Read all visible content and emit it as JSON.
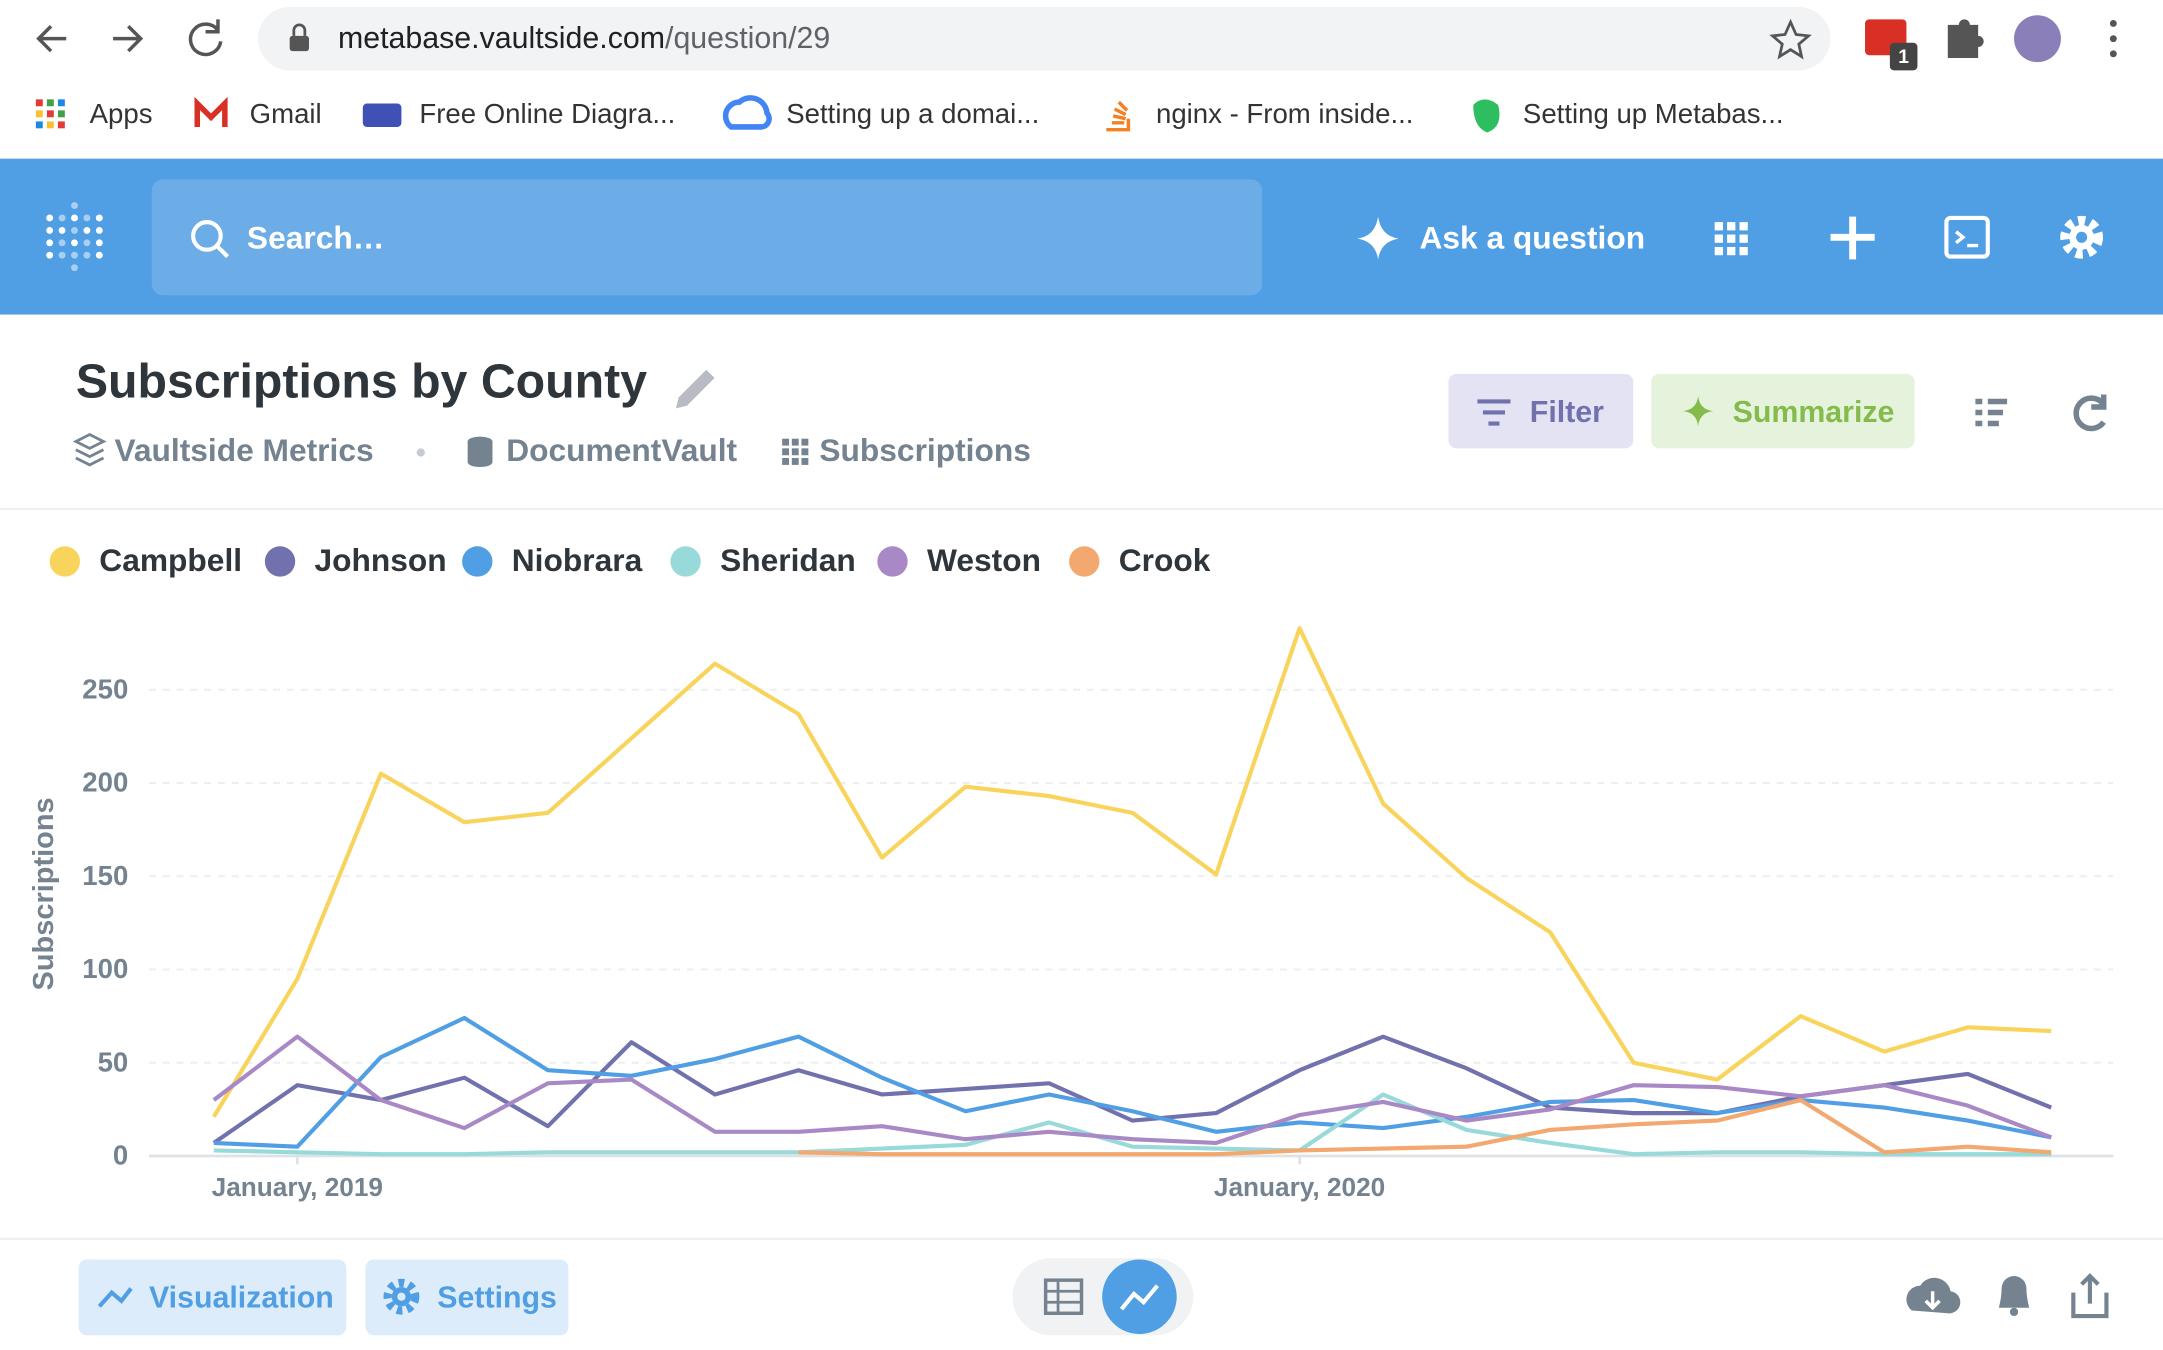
{
  "browser": {
    "url_host": "metabase.vaultside.com",
    "url_path": "/question/29",
    "extension_badge": "1",
    "bookmarks": [
      "Apps",
      "Gmail",
      "Free Online Diagra...",
      "Setting up a domai...",
      "nginx - From inside...",
      "Setting up Metabas..."
    ]
  },
  "nav": {
    "search": "Search…",
    "ask": "Ask a question"
  },
  "question": {
    "title": "Subscriptions by County",
    "breadcrumbs": [
      "Vaultside Metrics",
      "DocumentVault",
      "Subscriptions"
    ],
    "filter": "Filter",
    "summarize": "Summarize"
  },
  "chart_data": {
    "type": "line",
    "y_label": "Subscriptions",
    "categories": [
      null,
      "January, 2019",
      null,
      null,
      null,
      null,
      null,
      null,
      null,
      null,
      null,
      null,
      null,
      "January, 2020",
      null,
      null,
      null,
      null,
      null,
      null,
      null,
      null,
      null
    ],
    "ylim": [
      0,
      300
    ],
    "yticks": [
      0,
      50,
      100,
      150,
      200,
      250
    ],
    "grid": true,
    "legend": "top-left",
    "series": [
      {
        "name": "Campbell",
        "color": "#f9d45c",
        "values": [
          21,
          95,
          205,
          179,
          184,
          224,
          264,
          237,
          160,
          198,
          193,
          184,
          151,
          283,
          189,
          149,
          120,
          50,
          41,
          75,
          56,
          69,
          67
        ]
      },
      {
        "name": "Johnson",
        "color": "#7172ad",
        "values": [
          7,
          38,
          30,
          42,
          16,
          61,
          33,
          46,
          33,
          36,
          39,
          19,
          23,
          46,
          64,
          47,
          26,
          23,
          23,
          32,
          38,
          44,
          26
        ]
      },
      {
        "name": "Niobrara",
        "color": "#509ee3",
        "values": [
          7,
          5,
          53,
          74,
          46,
          43,
          52,
          64,
          42,
          24,
          33,
          24,
          13,
          18,
          15,
          21,
          29,
          30,
          23,
          30,
          26,
          19,
          10
        ]
      },
      {
        "name": "Sheridan",
        "color": "#98d9d9",
        "values": [
          3,
          2,
          1,
          1,
          2,
          2,
          2,
          2,
          4,
          6,
          18,
          5,
          4,
          3,
          33,
          14,
          7,
          1,
          2,
          2,
          1,
          1,
          1
        ]
      },
      {
        "name": "Weston",
        "color": "#a989c5",
        "values": [
          30,
          64,
          30,
          15,
          39,
          41,
          13,
          13,
          16,
          9,
          13,
          9,
          7,
          22,
          29,
          19,
          25,
          38,
          37,
          32,
          38,
          27,
          10
        ]
      },
      {
        "name": "Crook",
        "color": "#f2a86f",
        "values": [
          null,
          null,
          null,
          null,
          null,
          null,
          null,
          2,
          1,
          1,
          1,
          1,
          1,
          3,
          4,
          5,
          14,
          17,
          19,
          30,
          2,
          5,
          2
        ]
      }
    ]
  },
  "footer": {
    "visualization": "Visualization",
    "settings": "Settings"
  }
}
